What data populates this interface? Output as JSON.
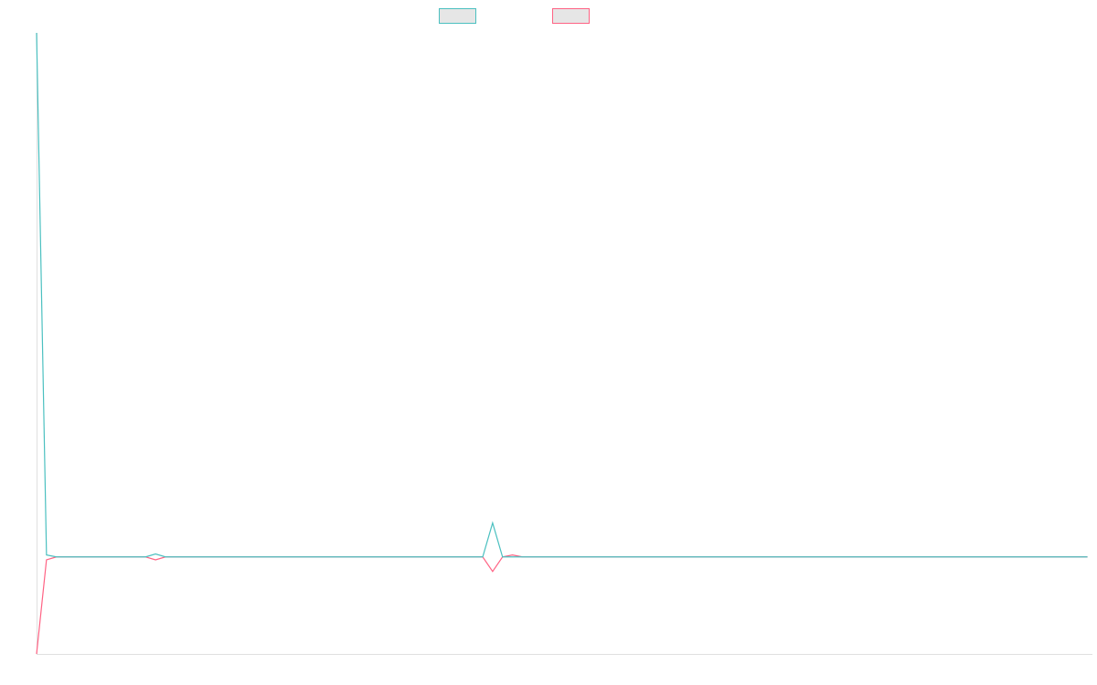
{
  "chart_data": {
    "type": "line",
    "ylim": [
      -1,
      5.4
    ],
    "series": [
      {
        "color": "#4bc0c0",
        "values": [
          5.4,
          0.02,
          0,
          0,
          0,
          0,
          0,
          0,
          0,
          0,
          0,
          0,
          0.03,
          0,
          0,
          0,
          0,
          0,
          0,
          0,
          0,
          0,
          0,
          0,
          0,
          0,
          0,
          0,
          0,
          0,
          0,
          0,
          0,
          0,
          0,
          0,
          0,
          0,
          0,
          0,
          0,
          0,
          0,
          0,
          0,
          0,
          0.35,
          0,
          0,
          0,
          0,
          0,
          0,
          0,
          0,
          0,
          0,
          0,
          0,
          0,
          0,
          0,
          0,
          0,
          0,
          0,
          0,
          0,
          0,
          0,
          0,
          0,
          0,
          0,
          0,
          0,
          0,
          0,
          0,
          0,
          0,
          0,
          0,
          0,
          0,
          0,
          0,
          0,
          0,
          0,
          0,
          0,
          0,
          0,
          0,
          0,
          0,
          0,
          0,
          0,
          0,
          0,
          0,
          0,
          0,
          0,
          0
        ]
      },
      {
        "color": "#ff6384",
        "values": [
          -1,
          -0.03,
          0,
          0,
          0,
          0,
          0,
          0,
          0,
          0,
          0,
          0,
          -0.03,
          0,
          0,
          0,
          0,
          0,
          0,
          0,
          0,
          0,
          0,
          0,
          0,
          0,
          0,
          0,
          0,
          0,
          0,
          0,
          0,
          0,
          0,
          0,
          0,
          0,
          0,
          0,
          0,
          0,
          0,
          0,
          0,
          0,
          -0.15,
          0,
          0.02,
          0,
          0,
          0,
          0,
          0,
          0,
          0,
          0,
          0,
          0,
          0,
          0,
          0,
          0,
          0,
          0,
          0,
          0,
          0,
          0,
          0,
          0,
          0,
          0,
          0,
          0,
          0,
          0,
          0,
          0,
          0,
          0,
          0,
          0,
          0,
          0,
          0,
          0,
          0,
          0,
          0,
          0,
          0,
          0,
          0,
          0,
          0,
          0,
          0,
          0,
          0,
          0,
          0,
          0,
          0,
          0,
          0,
          0
        ]
      }
    ]
  }
}
